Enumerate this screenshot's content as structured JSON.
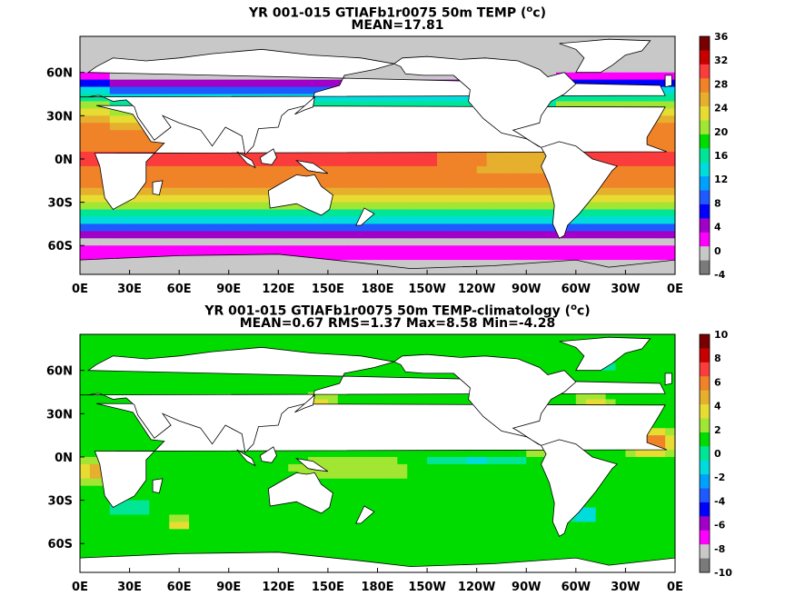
{
  "colors": {
    "land": "#ffffff",
    "ice": "#c8c8c8",
    "coast": "#000000",
    "palette": [
      "#7a7a7a",
      "#c8c8c8",
      "#ff00ff",
      "#a000c8",
      "#0000ff",
      "#1e5aff",
      "#00a0ff",
      "#00dcdc",
      "#00e696",
      "#00dc00",
      "#a0e632",
      "#e6dc32",
      "#e6af2d",
      "#f08228",
      "#fa3c3c",
      "#c80000",
      "#780000"
    ]
  },
  "panels": [
    {
      "title": {
        "line1_main": "YR 001-015 GTIAFb1r0075 50m TEMP (",
        "line1_sup": "o",
        "line1_end": "c)",
        "line2": "MEAN=17.81"
      },
      "chart_data": {
        "type": "heatmap",
        "map": "global ocean temperature at 50m",
        "x_tick_labels": [
          "0E",
          "30E",
          "60E",
          "90E",
          "120E",
          "150E",
          "180E",
          "150W",
          "120W",
          "90W",
          "60W",
          "30W",
          "0E"
        ],
        "y_tick_labels": [
          "60N",
          "30N",
          "0N",
          "30S",
          "60S"
        ],
        "x_range_deg_east": [
          0,
          360
        ],
        "y_range_deg_lat": [
          -80,
          85
        ],
        "colorbar": {
          "min": -4,
          "max": 36,
          "step": 2,
          "tick_labels": [
            "36",
            "32",
            "28",
            "24",
            "20",
            "16",
            "12",
            "8",
            "4",
            "0",
            "-4"
          ]
        },
        "mean": 17.81
      }
    },
    {
      "title": {
        "line1_main": "YR 001-015 GTIAFb1r0075 50m TEMP-climatology (",
        "line1_sup": "o",
        "line1_end": "c)",
        "line2": "MEAN=0.67   RMS=1.37   Max=8.58   Min=-4.28"
      },
      "chart_data": {
        "type": "heatmap",
        "map": "temperature difference from climatology at 50m",
        "x_tick_labels": [
          "0E",
          "30E",
          "60E",
          "90E",
          "120E",
          "150E",
          "180E",
          "150W",
          "120W",
          "90W",
          "60W",
          "30W",
          "0E"
        ],
        "y_tick_labels": [
          "60N",
          "30N",
          "0N",
          "30S",
          "60S"
        ],
        "x_range_deg_east": [
          0,
          360
        ],
        "y_range_deg_lat": [
          -80,
          85
        ],
        "colorbar": {
          "min": -10,
          "max": 10,
          "step": 1.25,
          "tick_labels": [
            "10",
            "8",
            "6",
            "4",
            "2",
            "0",
            "-2",
            "-4",
            "-6",
            "-8",
            "-10"
          ]
        },
        "mean": 0.67,
        "rms": 1.37,
        "max": 8.58,
        "min": -4.28
      }
    }
  ]
}
